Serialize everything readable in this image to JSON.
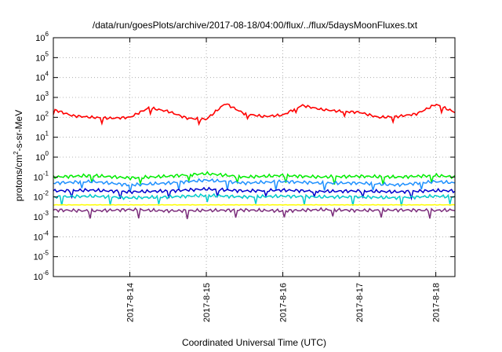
{
  "chart_data": {
    "type": "line",
    "title": "/data/run/goesPlots/archive/2017-08-18/04:00/flux/../flux/5daysMoonFluxes.txt",
    "xlabel": "Coordinated Universal Time (UTC)",
    "ylabel": {
      "base": "protons/cm",
      "sup": "2",
      "rest": "-s-sr-MeV"
    },
    "y_scale": "log",
    "ylim": [
      "1e-6",
      "1e6"
    ],
    "xlim": [
      "2017-08-13T00:00",
      "2017-08-18T06:00"
    ],
    "x_ticks": [
      "2017-8-14",
      "2017-8-15",
      "2017-8-16",
      "2017-8-17",
      "2017-8-18"
    ],
    "y_ticks": [
      {
        "base": "10",
        "exp": "6"
      },
      {
        "base": "10",
        "exp": "5"
      },
      {
        "base": "10",
        "exp": "4"
      },
      {
        "base": "10",
        "exp": "3"
      },
      {
        "base": "10",
        "exp": "2"
      },
      {
        "base": "10",
        "exp": "1"
      },
      {
        "base": "10",
        "exp": "0"
      },
      {
        "base": "10",
        "exp": "-1"
      },
      {
        "base": "10",
        "exp": "-2"
      },
      {
        "base": "10",
        "exp": "-3"
      },
      {
        "base": "10",
        "exp": "-4"
      },
      {
        "base": "10",
        "exp": "-5"
      },
      {
        "base": "10",
        "exp": "-6"
      }
    ],
    "grid": true,
    "legend": "none",
    "series": [
      {
        "color": "#ff0000",
        "time": [
          "2017-08-13T00:00",
          "2017-08-13T06:00",
          "2017-08-13T12:00",
          "2017-08-13T18:00",
          "2017-08-14T00:00",
          "2017-08-14T06:00",
          "2017-08-14T12:00",
          "2017-08-14T18:00",
          "2017-08-15T00:00",
          "2017-08-15T06:00",
          "2017-08-15T12:00",
          "2017-08-15T18:00",
          "2017-08-16T00:00",
          "2017-08-16T06:00",
          "2017-08-16T12:00",
          "2017-08-16T18:00",
          "2017-08-17T00:00",
          "2017-08-17T06:00",
          "2017-08-17T12:00",
          "2017-08-17T18:00",
          "2017-08-18T00:00",
          "2017-08-18T06:00"
        ],
        "values": [
          250,
          120,
          100,
          90,
          100,
          300,
          200,
          90,
          80,
          500,
          150,
          110,
          130,
          400,
          250,
          200,
          180,
          100,
          110,
          150,
          450,
          180
        ]
      },
      {
        "color": "#00ee00",
        "time": [
          "2017-08-13T00:00",
          "2017-08-13T12:00",
          "2017-08-14T00:00",
          "2017-08-14T12:00",
          "2017-08-15T00:00",
          "2017-08-15T12:00",
          "2017-08-16T00:00",
          "2017-08-16T12:00",
          "2017-08-17T00:00",
          "2017-08-17T12:00",
          "2017-08-18T00:00",
          "2017-08-18T06:00"
        ],
        "values": [
          0.1,
          0.12,
          0.09,
          0.11,
          0.15,
          0.1,
          0.12,
          0.1,
          0.11,
          0.1,
          0.12,
          0.1
        ]
      },
      {
        "color": "#1e90ff",
        "time": [
          "2017-08-13T00:00",
          "2017-08-13T12:00",
          "2017-08-14T00:00",
          "2017-08-14T12:00",
          "2017-08-15T00:00",
          "2017-08-15T12:00",
          "2017-08-16T00:00",
          "2017-08-16T12:00",
          "2017-08-17T00:00",
          "2017-08-17T12:00",
          "2017-08-18T00:00",
          "2017-08-18T06:00"
        ],
        "values": [
          0.05,
          0.06,
          0.04,
          0.05,
          0.07,
          0.05,
          0.06,
          0.05,
          0.05,
          0.04,
          0.06,
          0.05
        ]
      },
      {
        "color": "#0000cc",
        "time": [
          "2017-08-13T00:00",
          "2017-08-13T12:00",
          "2017-08-14T00:00",
          "2017-08-14T12:00",
          "2017-08-15T00:00",
          "2017-08-15T12:00",
          "2017-08-16T00:00",
          "2017-08-16T12:00",
          "2017-08-17T00:00",
          "2017-08-17T12:00",
          "2017-08-18T00:00",
          "2017-08-18T06:00"
        ],
        "values": [
          0.02,
          0.022,
          0.018,
          0.02,
          0.025,
          0.02,
          0.022,
          0.019,
          0.02,
          0.018,
          0.021,
          0.02
        ]
      },
      {
        "color": "#00cccc",
        "time": [
          "2017-08-13T00:00",
          "2017-08-13T12:00",
          "2017-08-14T00:00",
          "2017-08-14T12:00",
          "2017-08-15T00:00",
          "2017-08-15T12:00",
          "2017-08-16T00:00",
          "2017-08-16T12:00",
          "2017-08-17T00:00",
          "2017-08-17T12:00",
          "2017-08-18T00:00",
          "2017-08-18T06:00"
        ],
        "values": [
          0.01,
          0.011,
          0.009,
          0.01,
          0.012,
          0.01,
          0.011,
          0.01,
          0.01,
          0.009,
          0.011,
          0.01
        ]
      },
      {
        "color": "#ffff00",
        "time": [
          "2017-08-13T00:00",
          "2017-08-14T00:00",
          "2017-08-15T00:00",
          "2017-08-16T00:00",
          "2017-08-17T00:00",
          "2017-08-18T00:00",
          "2017-08-18T06:00"
        ],
        "values": [
          0.004,
          0.004,
          0.004,
          0.004,
          0.004,
          0.004,
          0.004
        ]
      },
      {
        "color": "#7b2d7b",
        "time": [
          "2017-08-13T00:00",
          "2017-08-13T12:00",
          "2017-08-14T00:00",
          "2017-08-14T12:00",
          "2017-08-15T00:00",
          "2017-08-15T12:00",
          "2017-08-16T00:00",
          "2017-08-16T12:00",
          "2017-08-17T00:00",
          "2017-08-17T12:00",
          "2017-08-18T00:00",
          "2017-08-18T06:00"
        ],
        "values": [
          0.0022,
          0.002,
          0.0023,
          0.002,
          0.0021,
          0.0022,
          0.002,
          0.0023,
          0.0021,
          0.0022,
          0.0021,
          0.0022
        ]
      }
    ]
  }
}
